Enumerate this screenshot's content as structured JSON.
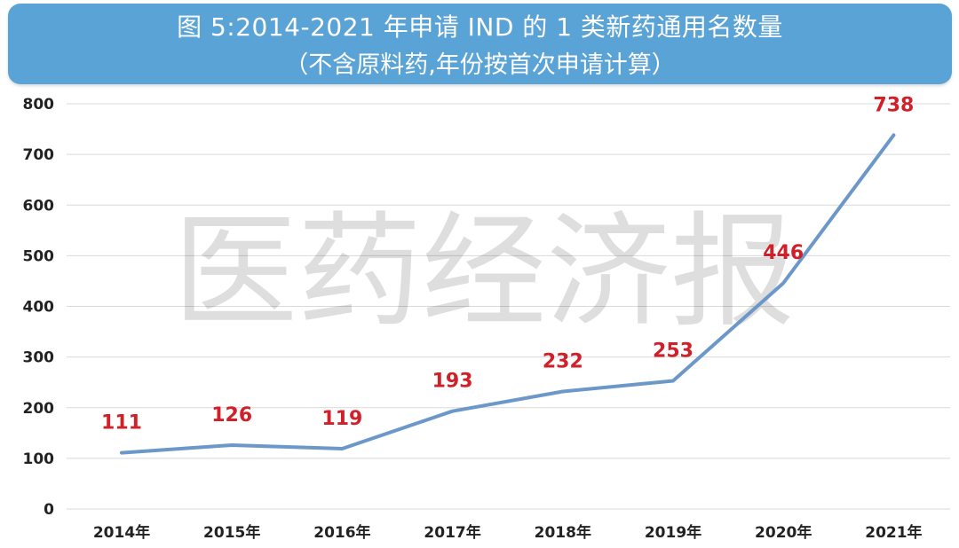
{
  "title": {
    "line1": "图 5:2014-2021 年申请 IND 的 1 类新药通用名数量",
    "line2": "（不含原料药,年份按首次申请计算）"
  },
  "watermark": "医药经济报",
  "colors": {
    "title_bg": "#5aa3d6",
    "line": "#6b98c9",
    "data_label": "#d0202a",
    "grid": "#d9d9d9"
  },
  "chart_data": {
    "type": "line",
    "title": "图 5:2014-2021 年申请 IND 的 1 类新药通用名数量",
    "subtitle": "（不含原料药,年份按首次申请计算）",
    "categories": [
      "2014年",
      "2015年",
      "2016年",
      "2017年",
      "2018年",
      "2019年",
      "2020年",
      "2021年"
    ],
    "series": [
      {
        "values": [
          111,
          126,
          119,
          193,
          232,
          253,
          446,
          738
        ]
      }
    ],
    "data_labels": [
      "111",
      "126",
      "119",
      "193",
      "232",
      "253",
      "446",
      "738"
    ],
    "ylim": [
      0,
      800
    ],
    "yticks": [
      0,
      100,
      200,
      300,
      400,
      500,
      600,
      700,
      800
    ],
    "grid": true,
    "legend": "none"
  }
}
